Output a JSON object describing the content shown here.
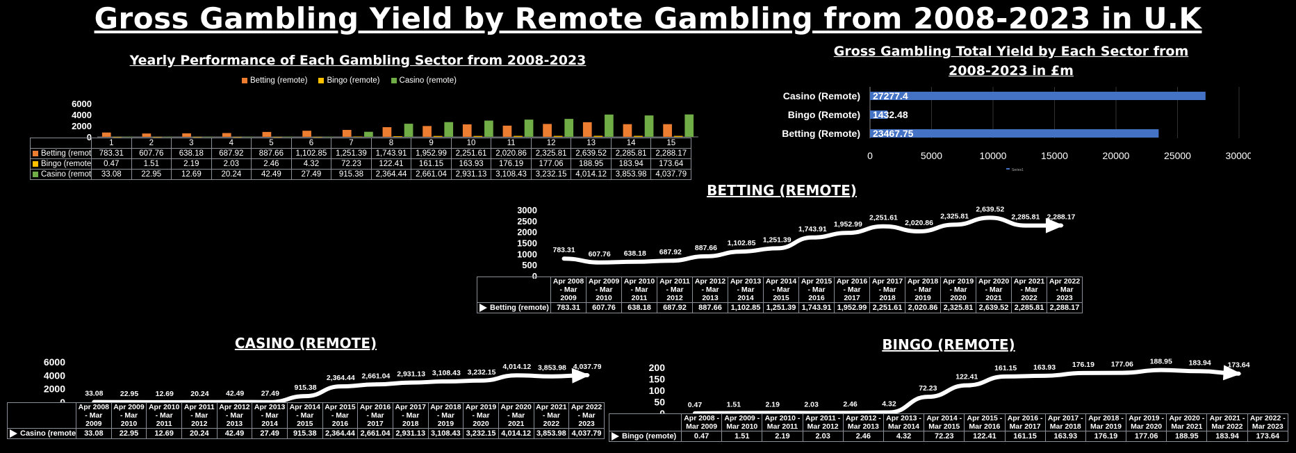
{
  "title": "Gross Gambling Yield by Remote Gambling from 2008-2023 in U.K",
  "colors": {
    "betting": "#ED7D31",
    "bingo": "#FFC000",
    "casino": "#70AD47",
    "bar_h": "#4472C4",
    "line": "#ffffff"
  },
  "chart_data": [
    {
      "type": "bar",
      "title": "Yearly Performance of Each Gambling Sector from 2008-2023",
      "categories": [
        "1",
        "2",
        "3",
        "4",
        "5",
        "6",
        "7",
        "8",
        "9",
        "10",
        "11",
        "12",
        "13",
        "14",
        "15"
      ],
      "series": [
        {
          "name": "Betting (remote)",
          "values": [
            783.31,
            607.76,
            638.18,
            687.92,
            887.66,
            1102.85,
            1251.39,
            1743.91,
            1952.99,
            2251.61,
            2020.86,
            2325.81,
            2639.52,
            2285.81,
            2288.17
          ],
          "labels": [
            "783.31",
            "607.76",
            "638.18",
            "687.92",
            "887.66",
            "1,102.85",
            "1,251.39",
            "1,743.91",
            "1,952.99",
            "2,251.61",
            "2,020.86",
            "2,325.81",
            "2,639.52",
            "2,285.81",
            "2,288.17"
          ]
        },
        {
          "name": "Bingo (remote)",
          "values": [
            0.47,
            1.51,
            2.19,
            2.03,
            2.46,
            4.32,
            72.23,
            122.41,
            161.15,
            163.93,
            176.19,
            177.06,
            188.95,
            183.94,
            173.64
          ],
          "labels": [
            "0.47",
            "1.51",
            "2.19",
            "2.03",
            "2.46",
            "4.32",
            "72.23",
            "122.41",
            "161.15",
            "163.93",
            "176.19",
            "177.06",
            "188.95",
            "183.94",
            "173.64"
          ]
        },
        {
          "name": "Casino (remote)",
          "values": [
            33.08,
            22.95,
            12.69,
            20.24,
            42.49,
            27.49,
            915.38,
            2364.44,
            2661.04,
            2931.13,
            3108.43,
            3232.15,
            4014.12,
            3853.98,
            4037.79
          ],
          "labels": [
            "33.08",
            "22.95",
            "12.69",
            "20.24",
            "42.49",
            "27.49",
            "915.38",
            "2,364.44",
            "2,661.04",
            "2,931.13",
            "3,108.43",
            "3,232.15",
            "4,014.12",
            "3,853.98",
            "4,037.79"
          ]
        }
      ],
      "yticks": [
        "0",
        "2000",
        "4000",
        "6000"
      ],
      "ylim": [
        0,
        6000
      ],
      "legend": "top"
    },
    {
      "type": "bar",
      "orientation": "horizontal",
      "title": "Gross Gambling Total Yield by Each Sector from 2008-2023 in £m",
      "categories": [
        "Casino (Remote)",
        "Bingo (Remote)",
        "Betting (Remote)"
      ],
      "values": [
        27277.4,
        1432.48,
        23467.75
      ],
      "labels": [
        "27277.4",
        "1432.48",
        "23467.75"
      ],
      "xticks": [
        "0",
        "5000",
        "10000",
        "15000",
        "20000",
        "25000",
        "30000"
      ],
      "xlim": [
        0,
        30000
      ],
      "legend_label": "Series1"
    },
    {
      "type": "line",
      "title": "BETTING (REMOTE)",
      "series_name": "Betting (remote)",
      "categories": [
        "Apr 2008 - Mar 2009",
        "Apr 2009 - Mar 2010",
        "Apr 2010 - Mar 2011",
        "Apr 2011 - Mar 2012",
        "Apr 2012 - Mar 2013",
        "Apr 2013 - Mar 2014",
        "Apr 2014 - Mar 2015",
        "Apr 2015 - Mar 2016",
        "Apr 2016 - Mar 2017",
        "Apr 2017 - Mar 2018",
        "Apr 2018 - Mar 2019",
        "Apr 2019 - Mar 2020",
        "Apr 2020 - Mar 2021",
        "Apr 2021 - Mar 2022",
        "Apr 2022 - Mar 2023"
      ],
      "values": [
        783.31,
        607.76,
        638.18,
        687.92,
        887.66,
        1102.85,
        1251.39,
        1743.91,
        1952.99,
        2251.61,
        2020.86,
        2325.81,
        2639.52,
        2285.81,
        2288.17
      ],
      "labels": [
        "783.31",
        "607.76",
        "638.18",
        "687.92",
        "887.66",
        "1,102.85",
        "1,251.39",
        "1,743.91",
        "1,952.99",
        "2,251.61",
        "2,020.86",
        "2,325.81",
        "2,639.52",
        "2,285.81",
        "2,288.17"
      ],
      "yticks": [
        "0",
        "500",
        "1000",
        "1500",
        "2000",
        "2500",
        "3000"
      ],
      "ylim": [
        0,
        3000
      ]
    },
    {
      "type": "line",
      "title": "CASINO (REMOTE)",
      "series_name": "Casino (remote)",
      "categories": [
        "Apr 2008 - Mar 2009",
        "Apr 2009 - Mar 2010",
        "Apr 2010 - Mar 2011",
        "Apr 2011 - Mar 2012",
        "Apr 2012 - Mar 2013",
        "Apr 2013 - Mar 2014",
        "Apr 2014 - Mar 2015",
        "Apr 2015 - Mar 2016",
        "Apr 2016 - Mar 2017",
        "Apr 2017 - Mar 2018",
        "Apr 2018 - Mar 2019",
        "Apr 2019 - Mar 2020",
        "Apr 2020 - Mar 2021",
        "Apr 2021 - Mar 2022",
        "Apr 2022 - Mar 2023"
      ],
      "values": [
        33.08,
        22.95,
        12.69,
        20.24,
        42.49,
        27.49,
        915.38,
        2364.44,
        2661.04,
        2931.13,
        3108.43,
        3232.15,
        4014.12,
        3853.98,
        4037.79
      ],
      "labels": [
        "33.08",
        "22.95",
        "12.69",
        "20.24",
        "42.49",
        "27.49",
        "915.38",
        "2,364.44",
        "2,661.04",
        "2,931.13",
        "3,108.43",
        "3,232.15",
        "4,014.12",
        "3,853.98",
        "4,037.79"
      ],
      "yticks": [
        "0",
        "2000",
        "4000",
        "6000"
      ],
      "ylim": [
        0,
        6000
      ]
    },
    {
      "type": "line",
      "title": "BINGO (REMOTE)",
      "series_name": "Bingo (remote)",
      "categories": [
        "Apr 2008 - Mar 2009",
        "Apr 2009 - Mar 2010",
        "Apr 2010 - Mar 2011",
        "Apr 2011 - Mar 2012",
        "Apr 2012 - Mar 2013",
        "Apr 2013 - Mar 2014",
        "Apr 2014 - Mar 2015",
        "Apr 2015 - Mar 2016",
        "Apr 2016 - Mar 2017",
        "Apr 2017 - Mar 2018",
        "Apr 2018 - Mar 2019",
        "Apr 2019 - Mar 2020",
        "Apr 2020 - Mar 2021",
        "Apr 2021 - Mar 2022",
        "Apr 2022 - Mar 2023"
      ],
      "values": [
        0.47,
        1.51,
        2.19,
        2.03,
        2.46,
        4.32,
        72.23,
        122.41,
        161.15,
        163.93,
        176.19,
        177.06,
        188.95,
        183.94,
        173.64
      ],
      "labels": [
        "0.47",
        "1.51",
        "2.19",
        "2.03",
        "2.46",
        "4.32",
        "72.23",
        "122.41",
        "161.15",
        "163.93",
        "176.19",
        "177.06",
        "188.95",
        "183.94",
        "173.64"
      ],
      "yticks": [
        "0",
        "50",
        "100",
        "150",
        "200"
      ],
      "ylim": [
        0,
        200
      ]
    }
  ]
}
